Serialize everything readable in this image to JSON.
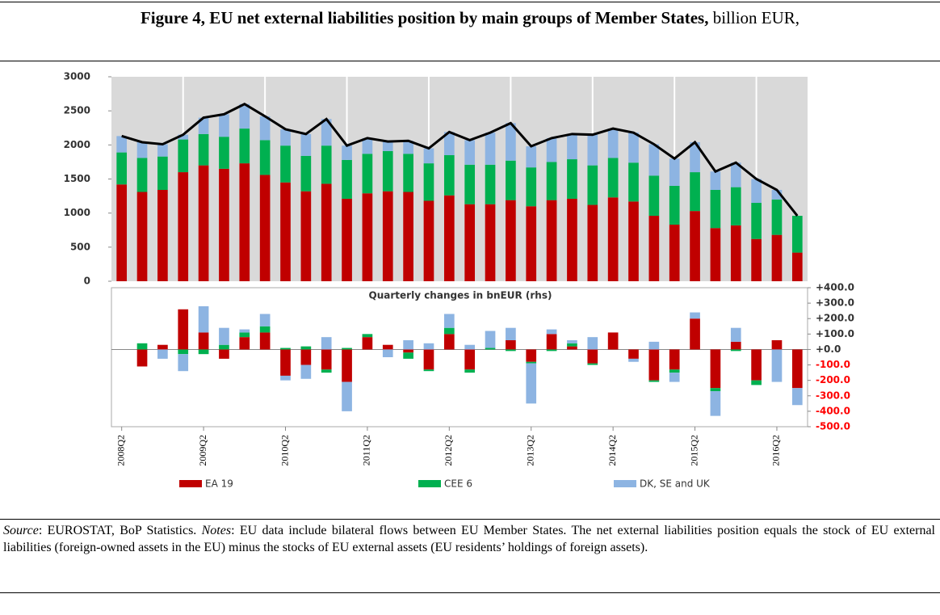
{
  "header": {
    "title_bold": "Figure 4, EU net external liabilities position by main groups of Member States,",
    "title_rest": " billion EUR,"
  },
  "footer": {
    "source_label": "Source",
    "source_text": ": EUROSTAT, BoP Statistics. ",
    "notes_label": "Notes",
    "notes_text": ": EU data include bilateral flows between EU Member States. The net external liabilities position equals the stock of EU external liabilities (foreign-owned assets in the EU) minus the stocks of EU external assets (EU residents’ holdings of foreign assets)."
  },
  "chart_data": [
    {
      "type": "bar",
      "stacked": true,
      "categories": [
        "2008Q2",
        null,
        null,
        null,
        "2009Q2",
        null,
        null,
        null,
        "2010Q2",
        null,
        null,
        null,
        "2011Q2",
        null,
        null,
        null,
        "2012Q2",
        null,
        null,
        null,
        "2013Q2",
        null,
        null,
        null,
        "2014Q2",
        null,
        null,
        null,
        "2015Q2",
        null,
        null,
        null,
        "2016Q2",
        null
      ],
      "series": [
        {
          "name": "EA 19",
          "color": "#c00000",
          "values": [
            1420,
            1310,
            1340,
            1600,
            1700,
            1650,
            1730,
            1560,
            1450,
            1320,
            1430,
            1210,
            1290,
            1320,
            1310,
            1180,
            1260,
            1130,
            1130,
            1190,
            1100,
            1190,
            1210,
            1120,
            1230,
            1170,
            960,
            830,
            1030,
            780,
            820,
            620,
            680,
            420
          ]
        },
        {
          "name": "CEE 6",
          "color": "#00b050",
          "values": [
            470,
            500,
            490,
            480,
            460,
            470,
            510,
            510,
            540,
            520,
            560,
            570,
            580,
            590,
            560,
            550,
            590,
            580,
            580,
            580,
            570,
            560,
            580,
            580,
            580,
            570,
            590,
            570,
            570,
            560,
            560,
            530,
            520,
            540
          ]
        },
        {
          "name": "DK, SE and UK",
          "color": "#8db4e2",
          "values": [
            240,
            230,
            180,
            70,
            240,
            330,
            360,
            350,
            240,
            320,
            390,
            210,
            230,
            140,
            190,
            220,
            340,
            360,
            470,
            550,
            310,
            350,
            370,
            450,
            430,
            440,
            460,
            400,
            440,
            270,
            360,
            350,
            140,
            0
          ]
        }
      ],
      "total_values": [
        2130,
        2040,
        2010,
        2150,
        2400,
        2450,
        2600,
        2420,
        2230,
        2160,
        2380,
        1990,
        2100,
        2050,
        2060,
        1950,
        2190,
        2070,
        2180,
        2320,
        1980,
        2100,
        2160,
        2150,
        2240,
        2180,
        2010,
        1800,
        2040,
        1610,
        1740,
        1500,
        1340,
        960
      ],
      "total_color": "#000000",
      "ylim": [
        0,
        3000
      ],
      "yticks": [
        0,
        500,
        1000,
        1500,
        2000,
        2500,
        3000
      ]
    },
    {
      "type": "bar",
      "stacked": true,
      "title": "Quarterly changes in bnEUR (rhs)",
      "series": [
        {
          "color": "#c00000",
          "values": [
            null,
            -110,
            30,
            260,
            110,
            -60,
            80,
            110,
            -170,
            -100,
            -130,
            -210,
            80,
            30,
            -20,
            -130,
            100,
            -130,
            0,
            60,
            -80,
            100,
            20,
            -90,
            110,
            -60,
            -200,
            -130,
            200,
            -250,
            50,
            -200,
            60,
            -250
          ]
        },
        {
          "color": "#00b050",
          "values": [
            null,
            40,
            0,
            -30,
            -30,
            30,
            30,
            40,
            10,
            20,
            -20,
            10,
            20,
            0,
            -40,
            -10,
            40,
            -20,
            10,
            -10,
            -10,
            -10,
            20,
            -10,
            0,
            0,
            -10,
            -20,
            0,
            -20,
            -10,
            -30,
            0,
            0
          ]
        },
        {
          "color": "#8db4e2",
          "values": [
            null,
            0,
            -60,
            -110,
            170,
            110,
            20,
            80,
            -30,
            -90,
            80,
            -190,
            0,
            -50,
            60,
            40,
            90,
            30,
            110,
            80,
            -260,
            30,
            20,
            80,
            0,
            -20,
            50,
            -60,
            40,
            -160,
            90,
            0,
            -210,
            -110
          ]
        }
      ],
      "ylim": [
        -500,
        400
      ],
      "yticks": [
        {
          "value": 400,
          "label": "+400.0"
        },
        {
          "value": 300,
          "label": "+300.0"
        },
        {
          "value": 200,
          "label": "+200.0"
        },
        {
          "value": 100,
          "label": "+100.0"
        },
        {
          "value": 0,
          "label": "+0.0"
        },
        {
          "value": -100,
          "label": "-100.0"
        },
        {
          "value": -200,
          "label": "-200.0"
        },
        {
          "value": -300,
          "label": "-300.0"
        },
        {
          "value": -400,
          "label": "-400.0"
        },
        {
          "value": -500,
          "label": "-500.0"
        }
      ],
      "negative_tick_color": "#ff0000"
    }
  ]
}
